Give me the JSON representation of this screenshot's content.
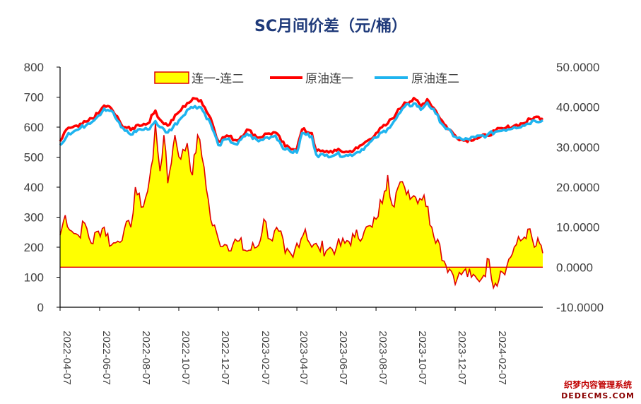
{
  "chart_data": {
    "type": "area+line",
    "title": "SC月间价差（元/桶）",
    "left_axis": {
      "min": 0,
      "max": 800,
      "step": 100,
      "ticks": [
        "800",
        "700",
        "600",
        "500",
        "400",
        "300",
        "200",
        "100",
        "0"
      ]
    },
    "right_axis": {
      "min": -10,
      "max": 50,
      "step": 10,
      "ticks": [
        "50.0000",
        "40.0000",
        "30.0000",
        "20.0000",
        "10.0000",
        "0.0000",
        "-10.0000"
      ]
    },
    "x_ticks": [
      "2022-04-07",
      "2022-06-07",
      "2022-08-07",
      "2022-10-07",
      "2022-12-07",
      "2023-02-07",
      "2023-04-07",
      "2023-06-07",
      "2023-08-07",
      "2023-10-07",
      "2023-12-07",
      "2024-02-07"
    ],
    "x_range": [
      "2022-04-07",
      "2024-04-20"
    ],
    "legend": {
      "position": "top",
      "items": [
        "连一-连二",
        "原油连一",
        "原油连二"
      ]
    },
    "colors": {
      "spread_fill": "#ffff00",
      "spread_line": "#e00000",
      "c1": "#ff0000",
      "c2": "#1fb4ef",
      "axis": "#000000",
      "title": "#1f3a7a"
    },
    "series": [
      {
        "name": "原油连一",
        "axis": "left",
        "kind": "line",
        "points": [
          [
            "2022-04-07",
            553
          ],
          [
            "2022-04-20",
            598
          ],
          [
            "2022-05-05",
            602
          ],
          [
            "2022-05-20",
            620
          ],
          [
            "2022-06-05",
            645
          ],
          [
            "2022-06-14",
            672
          ],
          [
            "2022-06-25",
            662
          ],
          [
            "2022-07-10",
            610
          ],
          [
            "2022-07-25",
            590
          ],
          [
            "2022-08-05",
            608
          ],
          [
            "2022-08-20",
            612
          ],
          [
            "2022-09-01",
            655
          ],
          [
            "2022-09-08",
            625
          ],
          [
            "2022-09-20",
            605
          ],
          [
            "2022-10-07",
            650
          ],
          [
            "2022-10-20",
            680
          ],
          [
            "2022-11-01",
            695
          ],
          [
            "2022-11-10",
            690
          ],
          [
            "2022-11-25",
            630
          ],
          [
            "2022-12-07",
            553
          ],
          [
            "2022-12-20",
            572
          ],
          [
            "2023-01-05",
            555
          ],
          [
            "2023-01-20",
            592
          ],
          [
            "2023-02-07",
            565
          ],
          [
            "2023-02-20",
            578
          ],
          [
            "2023-03-05",
            582
          ],
          [
            "2023-03-20",
            536
          ],
          [
            "2023-04-07",
            528
          ],
          [
            "2023-04-15",
            592
          ],
          [
            "2023-04-30",
            580
          ],
          [
            "2023-05-07",
            520
          ],
          [
            "2023-05-20",
            517
          ],
          [
            "2023-06-07",
            522
          ],
          [
            "2023-06-25",
            517
          ],
          [
            "2023-07-10",
            530
          ],
          [
            "2023-07-25",
            555
          ],
          [
            "2023-08-07",
            580
          ],
          [
            "2023-08-25",
            612
          ],
          [
            "2023-09-07",
            645
          ],
          [
            "2023-09-20",
            682
          ],
          [
            "2023-10-07",
            692
          ],
          [
            "2023-10-15",
            670
          ],
          [
            "2023-10-25",
            693
          ],
          [
            "2023-11-07",
            655
          ],
          [
            "2023-11-20",
            610
          ],
          [
            "2023-12-07",
            572
          ],
          [
            "2023-12-20",
            555
          ],
          [
            "2024-01-07",
            563
          ],
          [
            "2024-01-25",
            572
          ],
          [
            "2024-02-07",
            588
          ],
          [
            "2024-02-20",
            595
          ],
          [
            "2024-03-07",
            605
          ],
          [
            "2024-03-20",
            612
          ],
          [
            "2024-04-07",
            633
          ],
          [
            "2024-04-20",
            630
          ]
        ]
      },
      {
        "name": "原油连二",
        "axis": "left",
        "kind": "line",
        "points": [
          [
            "2022-04-07",
            540
          ],
          [
            "2022-04-20",
            580
          ],
          [
            "2022-05-05",
            592
          ],
          [
            "2022-05-20",
            612
          ],
          [
            "2022-06-05",
            638
          ],
          [
            "2022-06-14",
            662
          ],
          [
            "2022-06-25",
            655
          ],
          [
            "2022-07-10",
            600
          ],
          [
            "2022-07-25",
            575
          ],
          [
            "2022-08-05",
            592
          ],
          [
            "2022-08-20",
            592
          ],
          [
            "2022-09-01",
            620
          ],
          [
            "2022-09-08",
            600
          ],
          [
            "2022-09-20",
            582
          ],
          [
            "2022-10-07",
            622
          ],
          [
            "2022-10-20",
            658
          ],
          [
            "2022-11-01",
            670
          ],
          [
            "2022-11-10",
            666
          ],
          [
            "2022-11-25",
            612
          ],
          [
            "2022-12-07",
            540
          ],
          [
            "2022-12-20",
            560
          ],
          [
            "2023-01-05",
            542
          ],
          [
            "2023-01-20",
            578
          ],
          [
            "2023-02-07",
            553
          ],
          [
            "2023-02-20",
            566
          ],
          [
            "2023-03-05",
            572
          ],
          [
            "2023-03-20",
            525
          ],
          [
            "2023-04-07",
            515
          ],
          [
            "2023-04-15",
            580
          ],
          [
            "2023-04-30",
            570
          ],
          [
            "2023-05-07",
            508
          ],
          [
            "2023-05-20",
            505
          ],
          [
            "2023-06-07",
            510
          ],
          [
            "2023-06-25",
            505
          ],
          [
            "2023-07-10",
            517
          ],
          [
            "2023-07-25",
            540
          ],
          [
            "2023-08-07",
            565
          ],
          [
            "2023-08-25",
            595
          ],
          [
            "2023-09-07",
            628
          ],
          [
            "2023-09-20",
            668
          ],
          [
            "2023-10-07",
            678
          ],
          [
            "2023-10-15",
            658
          ],
          [
            "2023-10-25",
            682
          ],
          [
            "2023-11-07",
            645
          ],
          [
            "2023-11-20",
            602
          ],
          [
            "2023-12-07",
            568
          ],
          [
            "2023-12-20",
            557
          ],
          [
            "2024-01-07",
            566
          ],
          [
            "2024-01-25",
            573
          ],
          [
            "2024-02-07",
            585
          ],
          [
            "2024-02-20",
            591
          ],
          [
            "2024-03-07",
            600
          ],
          [
            "2024-03-20",
            605
          ],
          [
            "2024-04-07",
            622
          ],
          [
            "2024-04-20",
            623
          ]
        ]
      },
      {
        "name": "连一-连二",
        "axis": "right",
        "kind": "area",
        "points": [
          [
            "2022-04-07",
            8.0
          ],
          [
            "2022-04-15",
            13.0
          ],
          [
            "2022-04-25",
            9.0
          ],
          [
            "2022-05-05",
            8.0
          ],
          [
            "2022-05-15",
            11.0
          ],
          [
            "2022-05-25",
            6.0
          ],
          [
            "2022-06-05",
            9.0
          ],
          [
            "2022-06-14",
            10.0
          ],
          [
            "2022-06-25",
            5.5
          ],
          [
            "2022-07-05",
            6.5
          ],
          [
            "2022-07-15",
            9.5
          ],
          [
            "2022-07-25",
            10.0
          ],
          [
            "2022-08-01",
            20.0
          ],
          [
            "2022-08-10",
            15.0
          ],
          [
            "2022-08-20",
            19.0
          ],
          [
            "2022-08-28",
            27.0
          ],
          [
            "2022-09-01",
            36.0
          ],
          [
            "2022-09-08",
            24.0
          ],
          [
            "2022-09-14",
            33.0
          ],
          [
            "2022-09-20",
            21.0
          ],
          [
            "2022-10-01",
            33.0
          ],
          [
            "2022-10-10",
            27.0
          ],
          [
            "2022-10-20",
            31.0
          ],
          [
            "2022-10-28",
            23.0
          ],
          [
            "2022-11-05",
            33.0
          ],
          [
            "2022-11-15",
            25.0
          ],
          [
            "2022-11-25",
            12.0
          ],
          [
            "2022-12-07",
            7.0
          ],
          [
            "2022-12-20",
            5.5
          ],
          [
            "2023-01-05",
            6.5
          ],
          [
            "2023-01-20",
            4.0
          ],
          [
            "2023-02-07",
            5.5
          ],
          [
            "2023-02-15",
            12.0
          ],
          [
            "2023-02-25",
            7.0
          ],
          [
            "2023-03-10",
            9.0
          ],
          [
            "2023-03-20",
            3.5
          ],
          [
            "2023-04-01",
            2.5
          ],
          [
            "2023-04-07",
            6.0
          ],
          [
            "2023-04-20",
            9.5
          ],
          [
            "2023-04-30",
            5.0
          ],
          [
            "2023-05-10",
            5.0
          ],
          [
            "2023-05-25",
            4.5
          ],
          [
            "2023-06-07",
            5.0
          ],
          [
            "2023-06-20",
            6.0
          ],
          [
            "2023-07-05",
            7.5
          ],
          [
            "2023-07-20",
            9.0
          ],
          [
            "2023-08-01",
            10.0
          ],
          [
            "2023-08-07",
            12.0
          ],
          [
            "2023-08-20",
            19.0
          ],
          [
            "2023-08-25",
            23.0
          ],
          [
            "2023-09-01",
            15.5
          ],
          [
            "2023-09-10",
            20.0
          ],
          [
            "2023-09-20",
            20.0
          ],
          [
            "2023-10-07",
            17.5
          ],
          [
            "2023-10-20",
            18.0
          ],
          [
            "2023-11-01",
            10.0
          ],
          [
            "2023-11-10",
            7.0
          ],
          [
            "2023-11-20",
            1.5
          ],
          [
            "2023-12-01",
            -1.0
          ],
          [
            "2023-12-10",
            -3.0
          ],
          [
            "2023-12-20",
            -1.0
          ],
          [
            "2024-01-01",
            -2.5
          ],
          [
            "2024-01-10",
            -3.0
          ],
          [
            "2024-01-20",
            -2.0
          ],
          [
            "2024-01-28",
            2.0
          ],
          [
            "2024-02-01",
            -3.0
          ],
          [
            "2024-02-07",
            -4.0
          ],
          [
            "2024-02-15",
            -1.0
          ],
          [
            "2024-02-25",
            0.5
          ],
          [
            "2024-03-07",
            5.0
          ],
          [
            "2024-03-20",
            7.0
          ],
          [
            "2024-03-28",
            9.5
          ],
          [
            "2024-04-07",
            5.0
          ],
          [
            "2024-04-15",
            6.0
          ],
          [
            "2024-04-20",
            3.5
          ]
        ]
      }
    ]
  },
  "watermark": {
    "line1": "织梦内容管理系统",
    "line2": "DEDECMS.COM"
  }
}
